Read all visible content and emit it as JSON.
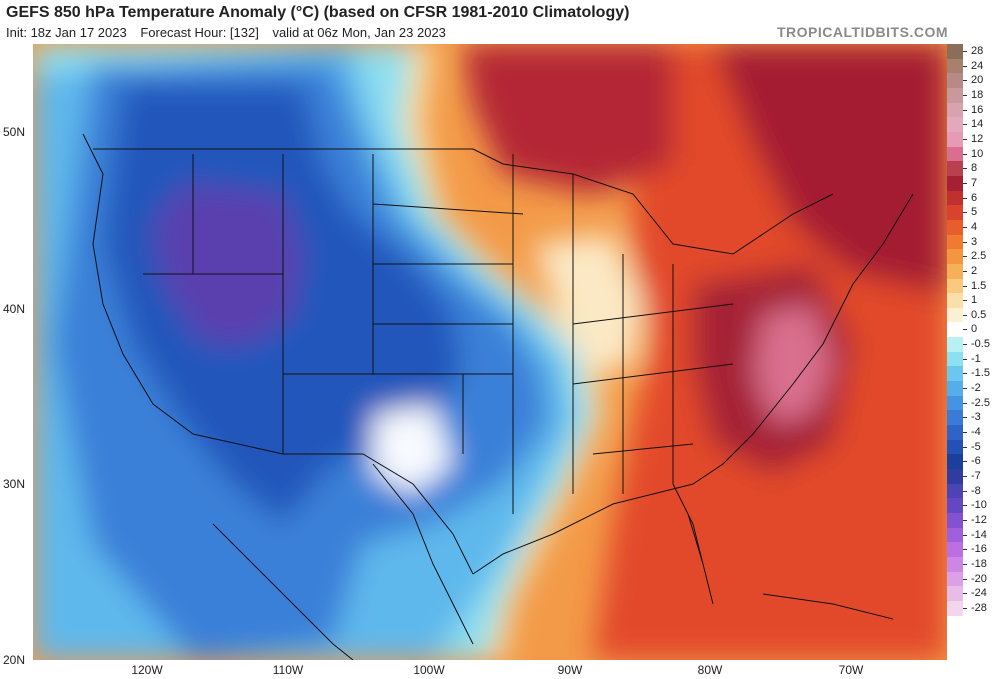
{
  "header": {
    "title": "GEFS 850 hPa Temperature Anomaly (°C) (based on CFSR 1981-2010 Climatology)",
    "init": "Init: 18z Jan 17 2023",
    "forecast_hour": "Forecast Hour: [132]",
    "valid": "valid at 06z Mon, Jan 23 2023",
    "brand": "TROPICALTIDBITS.COM"
  },
  "map": {
    "lat_labels": [
      "50N",
      "40N",
      "30N",
      "20N"
    ],
    "lon_labels": [
      "120W",
      "110W",
      "100W",
      "90W",
      "80W",
      "70W"
    ]
  },
  "colorbar": {
    "levels": [
      "28",
      "24",
      "20",
      "18",
      "16",
      "14",
      "12",
      "10",
      "8",
      "7",
      "6",
      "5",
      "4",
      "3",
      "2.5",
      "2",
      "1.5",
      "1",
      "0.5",
      "0",
      "-0.5",
      "-1",
      "-1.5",
      "-2",
      "-2.5",
      "-3",
      "-4",
      "-5",
      "-6",
      "-7",
      "-8",
      "-10",
      "-12",
      "-14",
      "-16",
      "-18",
      "-20",
      "-24",
      "-28"
    ],
    "colors": [
      "#8b6e5a",
      "#a8816d",
      "#b88a86",
      "#c8999c",
      "#d7a3ad",
      "#e2a8bb",
      "#e79ab5",
      "#d96f8e",
      "#b8404f",
      "#a52034",
      "#c0302f",
      "#d9432e",
      "#e85d2c",
      "#ef7b33",
      "#f3963f",
      "#f6b05a",
      "#f8c97f",
      "#fadfa8",
      "#fcf0d4",
      "#ffffff",
      "#b7f1f4",
      "#8de0f0",
      "#6ac8ee",
      "#55aeea",
      "#4594e3",
      "#3a7bd8",
      "#2f63c8",
      "#2351b6",
      "#1d3f9c",
      "#2f3e9e",
      "#4b44b2",
      "#6447c4",
      "#8452d0",
      "#a05fdb",
      "#bb6fe0",
      "#cd86e3",
      "#dba0e6",
      "#e7bce9",
      "#f1d6ee"
    ]
  }
}
